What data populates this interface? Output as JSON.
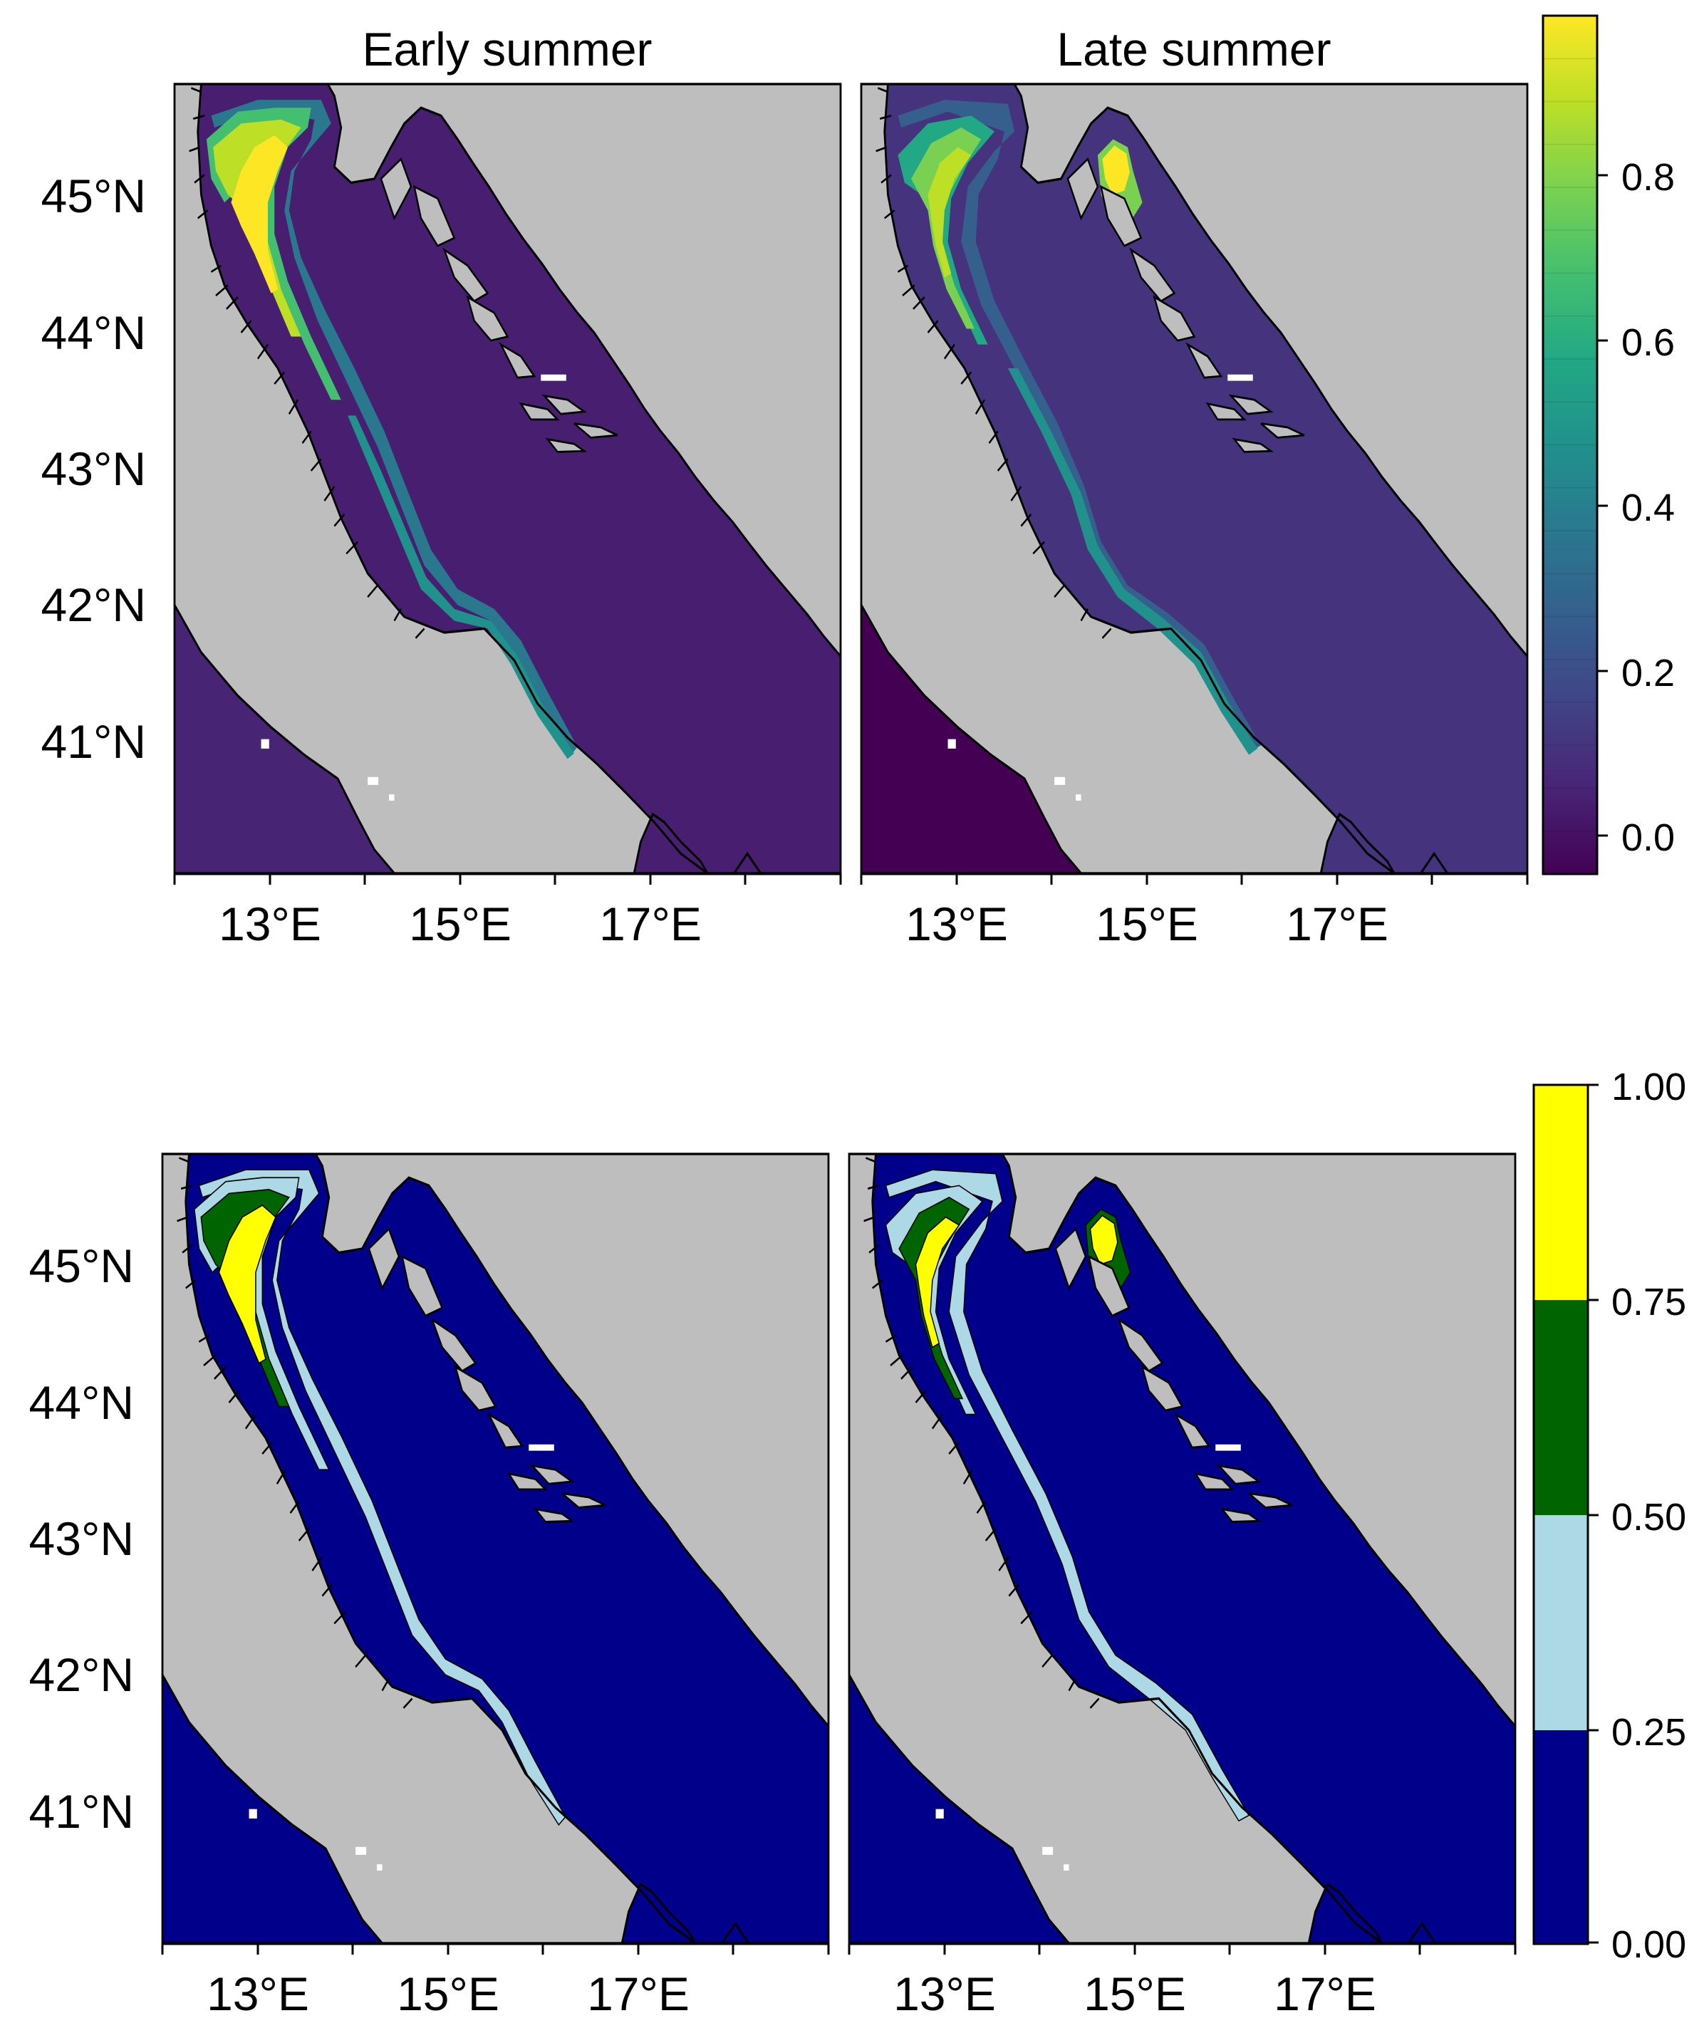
{
  "colors": {
    "land": "#bebebe",
    "frame": "#000000",
    "coast": "#000000",
    "white_pixel": "#ffffff"
  },
  "top_row": {
    "titles": [
      "Early summer",
      "Late summer"
    ],
    "lat_ticks": [
      "45°N",
      "44°N",
      "43°N",
      "42°N",
      "41°N"
    ],
    "lon_ticks": [
      "13°E",
      "15°E",
      "17°E"
    ],
    "colorbar": {
      "name": "continuous-viridis-scale",
      "stops": [
        "#440154",
        "#482475",
        "#414487",
        "#355f8d",
        "#2a788e",
        "#21918c",
        "#22a884",
        "#44bf70",
        "#7ad151",
        "#bddf26",
        "#fde725"
      ],
      "ticks": [
        "0.8",
        "0.6",
        "0.4",
        "0.2",
        "0.0"
      ]
    }
  },
  "bottom_row": {
    "lat_ticks": [
      "45°N",
      "44°N",
      "43°N",
      "42°N",
      "41°N"
    ],
    "lon_ticks": [
      "13°E",
      "15°E",
      "17°E"
    ],
    "colorbar": {
      "name": "categorical-class-scale",
      "classes": [
        {
          "from": 0.75,
          "to": 1.0,
          "color": "#ffff00"
        },
        {
          "from": 0.5,
          "to": 0.75,
          "color": "#006400"
        },
        {
          "from": 0.25,
          "to": 0.5,
          "color": "#add8e6"
        },
        {
          "from": 0.0,
          "to": 0.25,
          "color": "#00008b"
        }
      ],
      "ticks": [
        "1.00",
        "0.75",
        "0.50",
        "0.25",
        "0.00"
      ]
    }
  },
  "panels": [
    {
      "id": "top-early",
      "style": "continuous",
      "scenario": "early",
      "zones": {
        "band1": "#44bf70",
        "band2": "#bddf26",
        "band3": "#fde725",
        "plume_mid": "#2a788e",
        "plume_thin": "#21918c",
        "sea": "#481f70",
        "tyrrhenian": "#482475"
      }
    },
    {
      "id": "top-late",
      "style": "continuous",
      "scenario": "late",
      "zones": {
        "band1": "#22a884",
        "band2": "#7ad151",
        "band3": "#bddf26",
        "plume_mid": "#355f8d",
        "plume_thin": "#21918c",
        "sea": "#46337e",
        "tyrrhenian": "#440154"
      }
    },
    {
      "id": "bottom-early",
      "style": "categorical",
      "scenario": "early",
      "zones": {
        "band1": "#add8e6",
        "band2": "#006400",
        "band3": "#ffff00",
        "plume_mid": "#add8e6",
        "plume_thin": "#add8e6",
        "sea": "#00008b",
        "tyrrhenian": "#00008b"
      }
    },
    {
      "id": "bottom-late",
      "style": "categorical",
      "scenario": "late",
      "zones": {
        "band1": "#add8e6",
        "band2": "#006400",
        "band3": "#ffff00",
        "plume_mid": "#add8e6",
        "plume_thin": "#add8e6",
        "sea": "#00008b",
        "tyrrhenian": "#00008b"
      }
    }
  ]
}
